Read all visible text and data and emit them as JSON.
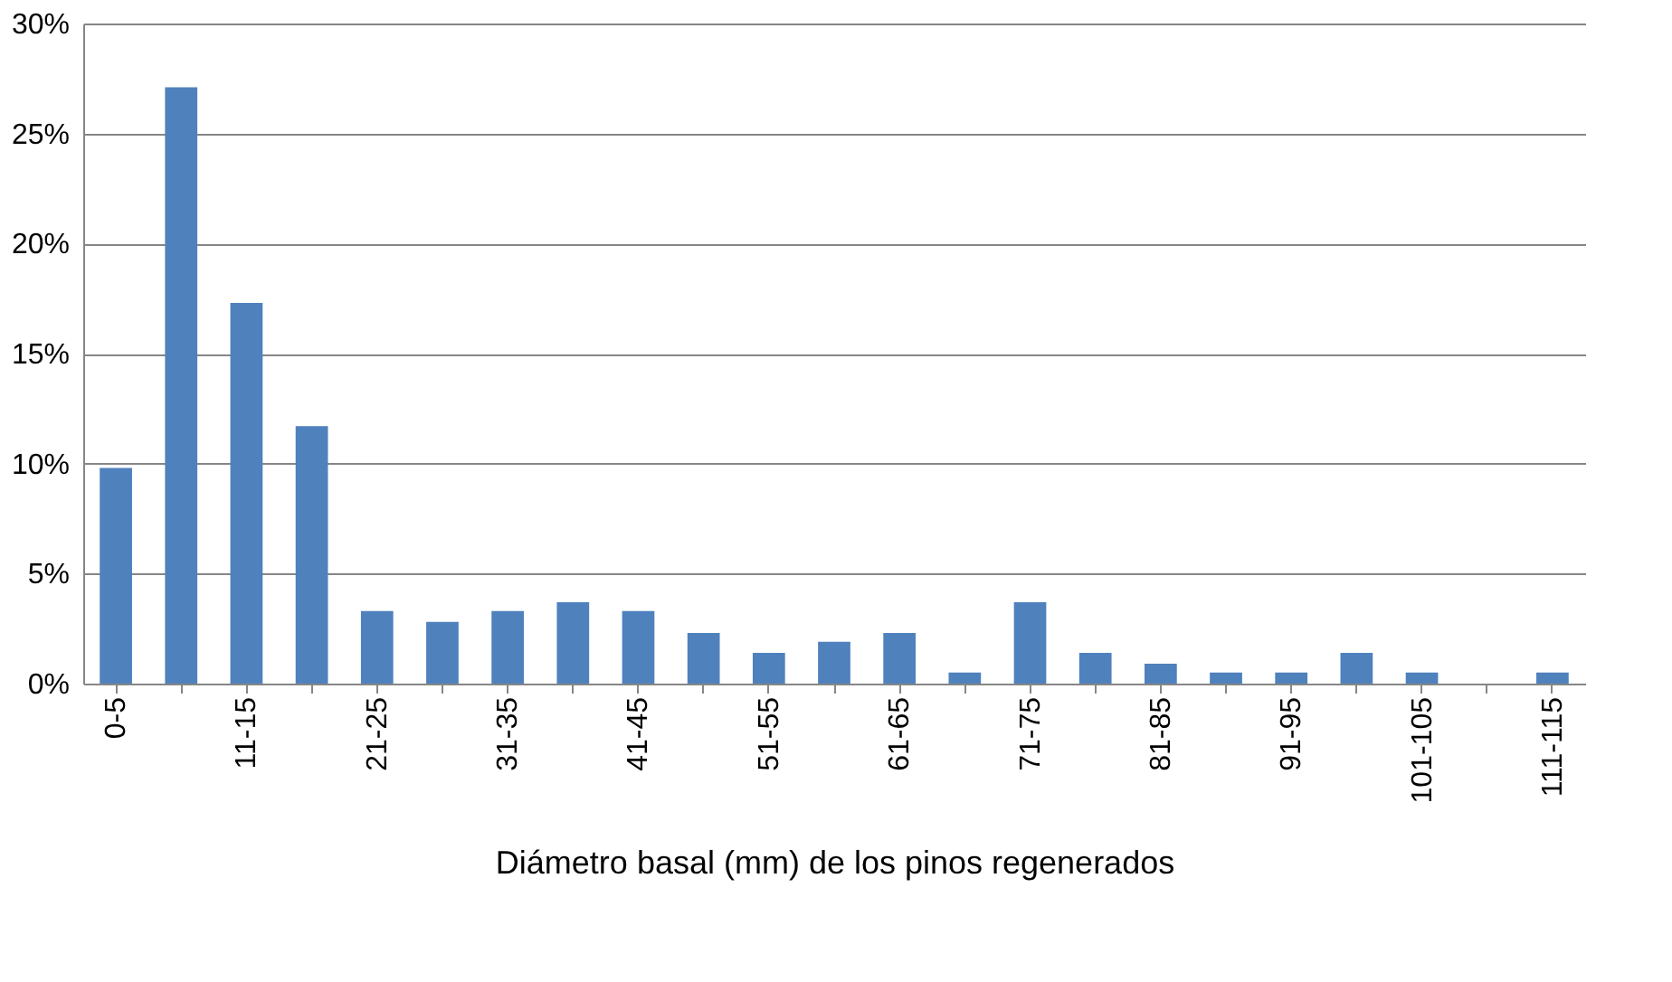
{
  "chart_data": {
    "type": "bar",
    "xlabel": "Diámetro basal (mm) de los pinos regenerados",
    "categories": [
      "0-5",
      null,
      "11-15",
      null,
      "21-25",
      null,
      "31-35",
      null,
      "41-45",
      null,
      "51-55",
      null,
      "61-65",
      null,
      "71-75",
      null,
      "81-85",
      null,
      "91-95",
      null,
      "101-105",
      null,
      "111-115"
    ],
    "values": [
      9.8,
      27.1,
      17.3,
      11.7,
      3.3,
      2.8,
      3.3,
      3.7,
      3.3,
      2.3,
      1.4,
      1.9,
      2.3,
      0.5,
      3.7,
      1.4,
      0.9,
      0.5,
      0.5,
      1.4,
      0.5,
      0,
      0.5
    ],
    "color": "#4f81bd",
    "ylim": [
      0,
      30
    ],
    "yticks": [
      {
        "value": 0,
        "label": "0%"
      },
      {
        "value": 5,
        "label": "5%"
      },
      {
        "value": 10,
        "label": "10%"
      },
      {
        "value": 15,
        "label": "15%"
      },
      {
        "value": 20,
        "label": "20%"
      },
      {
        "value": 25,
        "label": "25%"
      },
      {
        "value": 30,
        "label": "30%"
      }
    ],
    "grid": "y"
  }
}
